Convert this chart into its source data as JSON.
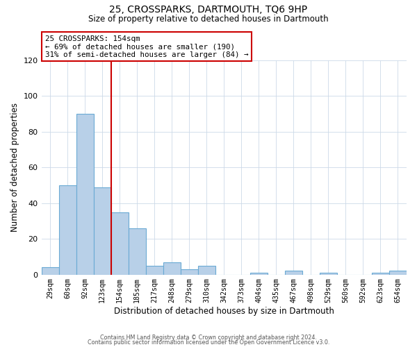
{
  "title": "25, CROSSPARKS, DARTMOUTH, TQ6 9HP",
  "subtitle": "Size of property relative to detached houses in Dartmouth",
  "xlabel": "Distribution of detached houses by size in Dartmouth",
  "ylabel": "Number of detached properties",
  "bar_labels": [
    "29sqm",
    "60sqm",
    "92sqm",
    "123sqm",
    "154sqm",
    "185sqm",
    "217sqm",
    "248sqm",
    "279sqm",
    "310sqm",
    "342sqm",
    "373sqm",
    "404sqm",
    "435sqm",
    "467sqm",
    "498sqm",
    "529sqm",
    "560sqm",
    "592sqm",
    "623sqm",
    "654sqm"
  ],
  "bar_values": [
    4,
    50,
    90,
    49,
    35,
    26,
    5,
    7,
    3,
    5,
    0,
    0,
    1,
    0,
    2,
    0,
    1,
    0,
    0,
    1,
    2
  ],
  "bar_color": "#b8d0e8",
  "bar_edge_color": "#6aaad4",
  "vline_x_idx": 4,
  "vline_color": "#cc0000",
  "ylim": [
    0,
    120
  ],
  "yticks": [
    0,
    20,
    40,
    60,
    80,
    100,
    120
  ],
  "annotation_line1": "25 CROSSPARKS: 154sqm",
  "annotation_line2": "← 69% of detached houses are smaller (190)",
  "annotation_line3": "31% of semi-detached houses are larger (84) →",
  "annotation_box_color": "#ffffff",
  "annotation_box_edge_color": "#cc0000",
  "footer_line1": "Contains HM Land Registry data © Crown copyright and database right 2024.",
  "footer_line2": "Contains public sector information licensed under the Open Government Licence v3.0.",
  "background_color": "#ffffff",
  "grid_color": "#ccd9e8"
}
